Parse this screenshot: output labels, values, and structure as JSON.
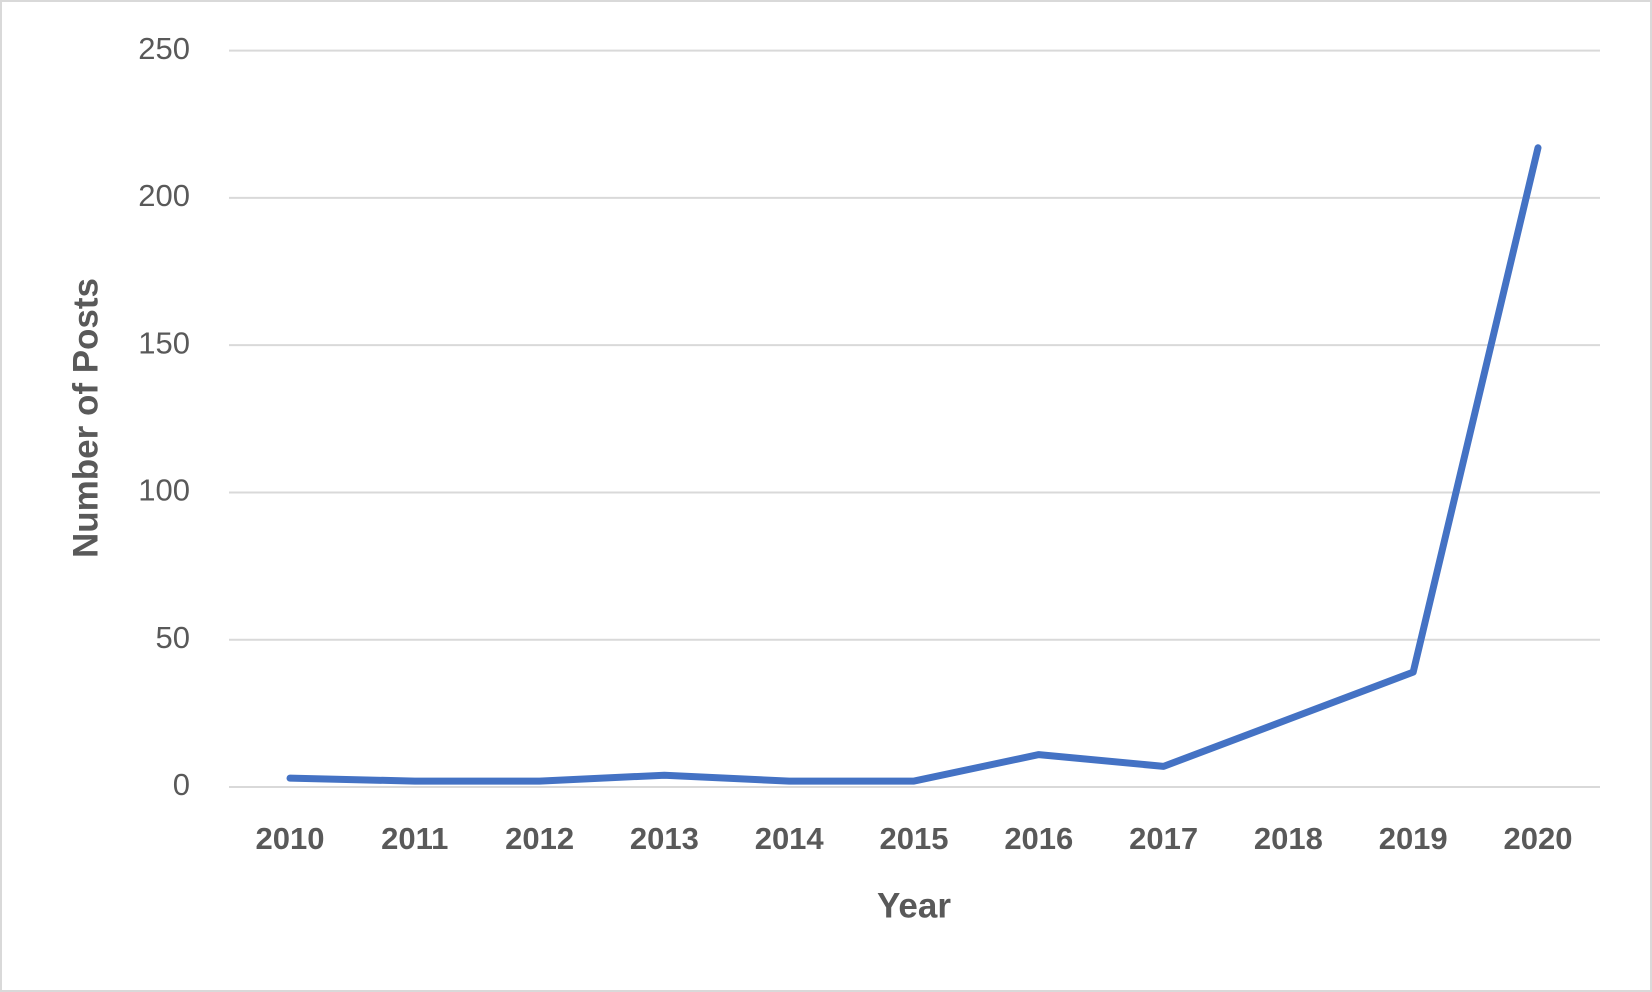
{
  "chart_data": {
    "type": "line",
    "x_label": "Year",
    "y_label": "Number of Posts",
    "categories": [
      "2010",
      "2011",
      "2012",
      "2013",
      "2014",
      "2015",
      "2016",
      "2017",
      "2018",
      "2019",
      "2020"
    ],
    "series": [
      {
        "name": "Number of Posts",
        "color": "#4472c4",
        "values": [
          3,
          2,
          2,
          4,
          2,
          2,
          11,
          7,
          23,
          39,
          217
        ]
      }
    ],
    "ylim": [
      0,
      250
    ],
    "yticks": [
      0,
      50,
      100,
      150,
      200,
      250
    ],
    "grid": true
  }
}
